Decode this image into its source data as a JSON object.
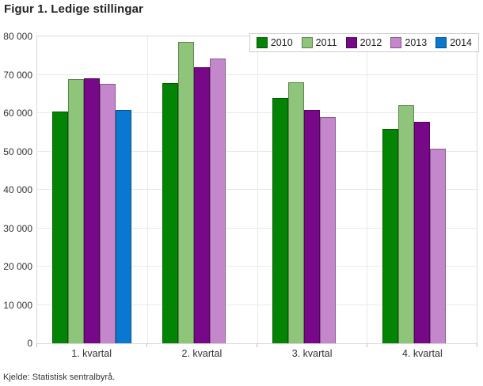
{
  "title": "Figur 1. Ledige stillingar",
  "source": "Kjelde: Statistisk sentralbyrå.",
  "chart_data": {
    "type": "bar",
    "title": "Figur 1. Ledige stillingar",
    "categories": [
      "1. kvartal",
      "2. kvartal",
      "3. kvartal",
      "4. kvartal"
    ],
    "series": [
      {
        "name": "2010",
        "color": "#048404",
        "values": [
          60400,
          67900,
          63900,
          55800
        ]
      },
      {
        "name": "2011",
        "color": "#8fc47b",
        "values": [
          68900,
          78500,
          68000,
          62100
        ]
      },
      {
        "name": "2012",
        "color": "#770887",
        "values": [
          69100,
          71900,
          60800,
          57700
        ]
      },
      {
        "name": "2013",
        "color": "#c487cb",
        "values": [
          67600,
          74200,
          58900,
          50800
        ]
      },
      {
        "name": "2014",
        "color": "#0978d1",
        "values": [
          60800,
          null,
          null,
          null
        ]
      }
    ],
    "ylim": [
      0,
      80000
    ],
    "ytick_step": 10000,
    "ytick_labels": [
      "0",
      "10 000",
      "20 000",
      "30 000",
      "40 000",
      "50 000",
      "60 000",
      "70 000",
      "80 000"
    ],
    "grid": true,
    "legend_position": "top-right",
    "source": "Kjelde: Statistisk sentralbyrå."
  }
}
